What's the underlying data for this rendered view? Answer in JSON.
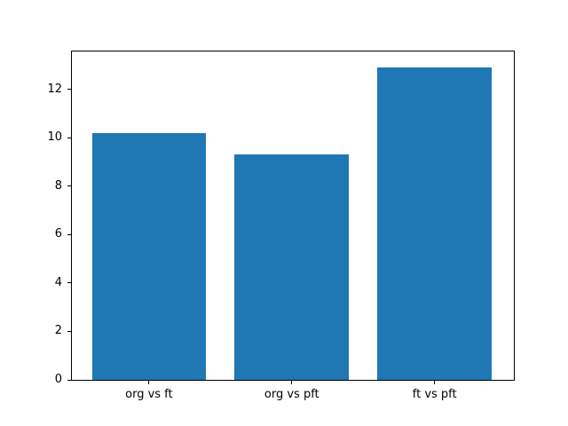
{
  "figure": {
    "background_color": "#ffffff"
  },
  "chart_data": {
    "type": "bar",
    "title": "",
    "xlabel": "",
    "ylabel": "",
    "categories": [
      "org vs ft",
      "org vs pft",
      "ft vs pft"
    ],
    "values": [
      10.2,
      9.3,
      12.9
    ],
    "yticks": [
      0,
      2,
      4,
      6,
      8,
      10,
      12
    ],
    "ytick_labels": [
      "0",
      "2",
      "4",
      "6",
      "8",
      "10",
      "12"
    ],
    "ylim": [
      0,
      13.56
    ],
    "bar_color": "#1f77b4",
    "axes_color": "#000000",
    "grid": false,
    "legend": "none"
  }
}
